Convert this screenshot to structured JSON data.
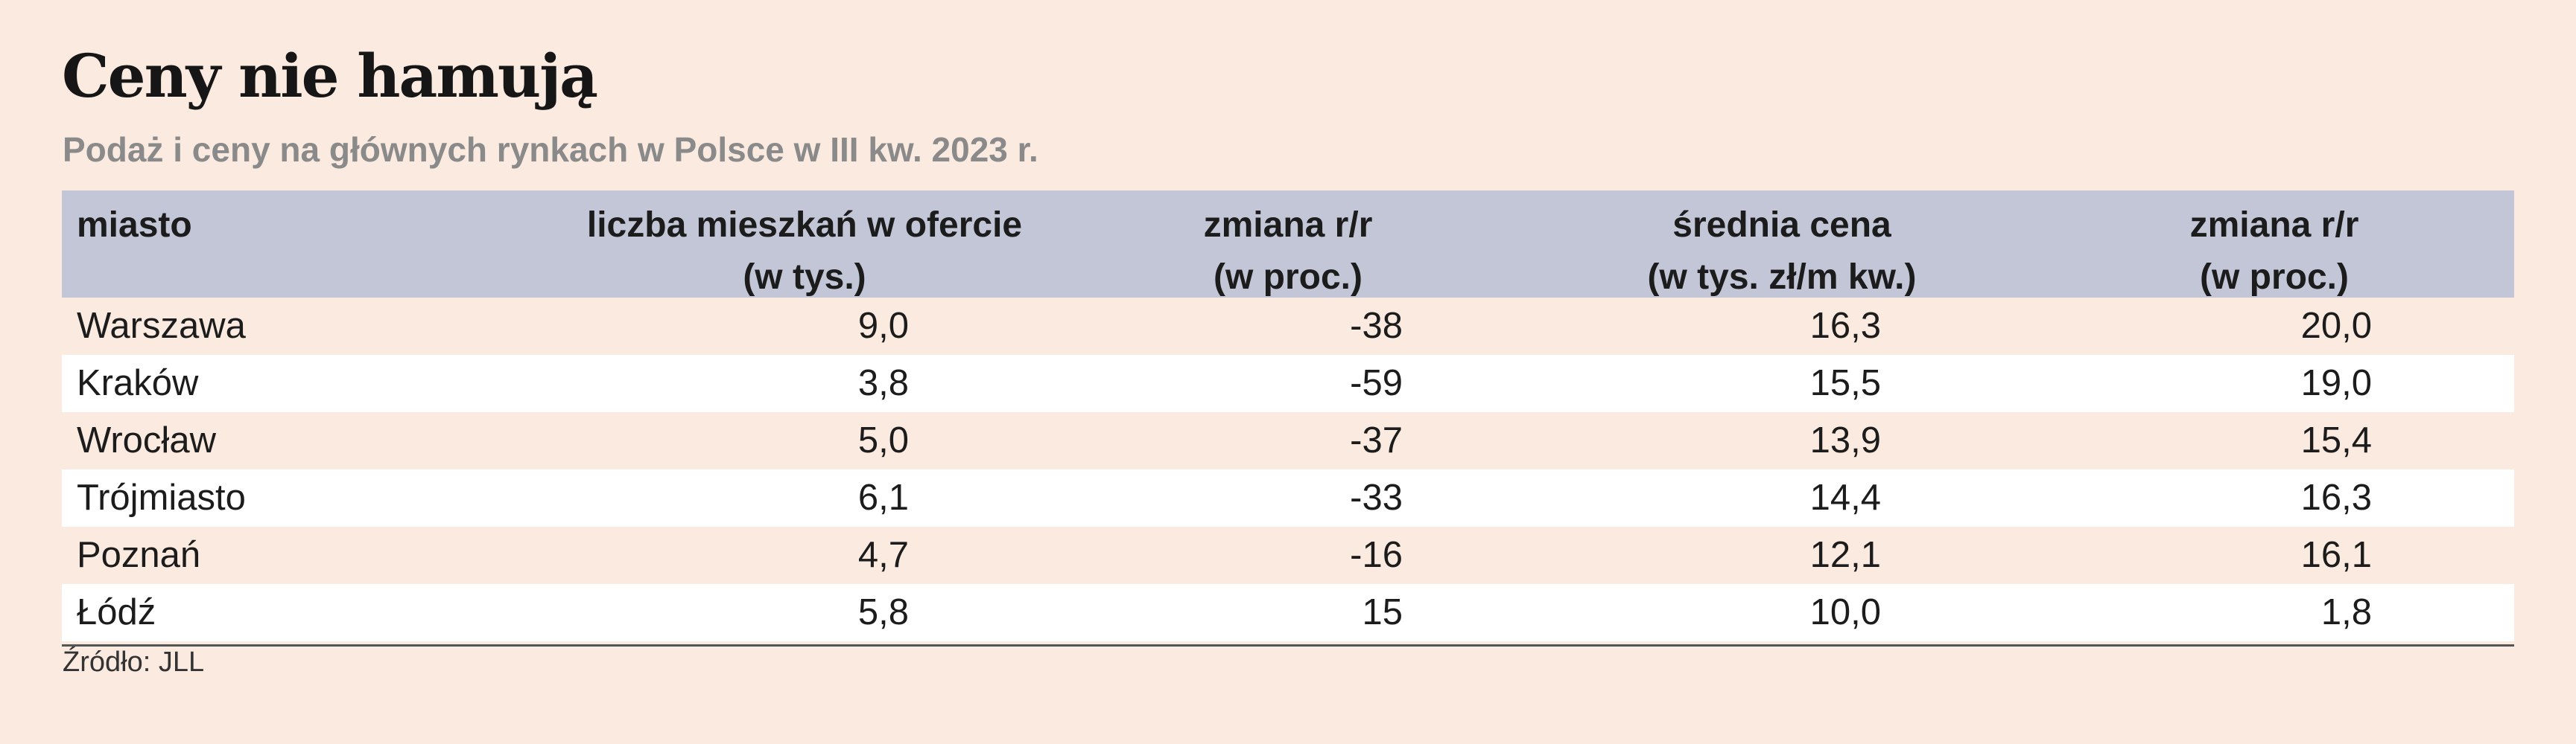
{
  "title": "Ceny nie hamują",
  "subtitle": "Podaż i ceny na głównych rynkach w Polsce w III kw. 2023 r.",
  "source": "Źródło: JLL",
  "colors": {
    "background": "#fbeadf",
    "header_background": "#c3c6d7",
    "alt_row_background": "#ffffff",
    "title": "#161616",
    "subtitle": "#8a8a8a"
  },
  "chart_data": {
    "type": "table",
    "title": "Ceny nie hamują",
    "subtitle": "Podaż i ceny na głównych rynkach w Polsce w III kw. 2023 r.",
    "columns": [
      {
        "line1": "miasto",
        "line2": ""
      },
      {
        "line1": "liczba mieszkań w ofercie",
        "line2": "(w tys.)"
      },
      {
        "line1": "zmiana r/r",
        "line2": "(w proc.)"
      },
      {
        "line1": "średnia cena",
        "line2": "(w tys. zł/m kw.)"
      },
      {
        "line1": "zmiana r/r",
        "line2": "(w proc.)"
      }
    ],
    "rows": [
      [
        "Warszawa",
        "9,0",
        "-38",
        "16,3",
        "20,0"
      ],
      [
        "Kraków",
        "3,8",
        "-59",
        "15,5",
        "19,0"
      ],
      [
        "Wrocław",
        "5,0",
        "-37",
        "13,9",
        "15,4"
      ],
      [
        "Trójmiasto",
        "6,1",
        "-33",
        "14,4",
        "16,3"
      ],
      [
        "Poznań",
        "4,7",
        "-16",
        "12,1",
        "16,1"
      ],
      [
        "Łódź",
        "5,8",
        "15",
        "10,0",
        "1,8"
      ]
    ],
    "source": "Źródło: JLL"
  }
}
